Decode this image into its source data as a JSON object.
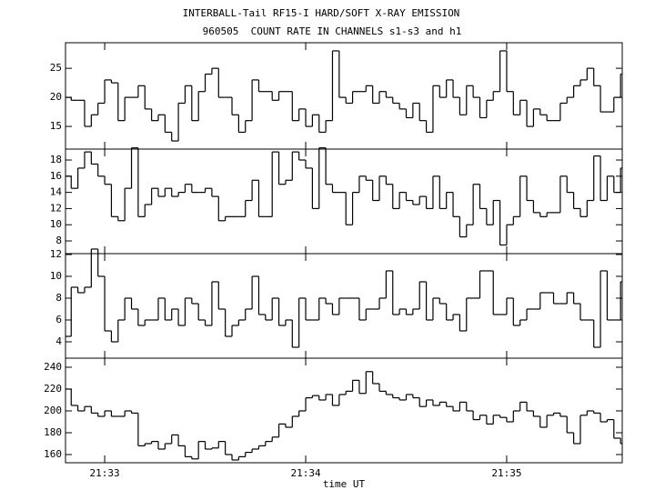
{
  "chart_data": [
    {
      "type": "line",
      "title": "INTERBALL-Tail RF15-I HARD/SOFT X-RAY EMISSION",
      "subtitle": "960505  COUNT RATE IN CHANNELS s1-s3 and h1",
      "x": [
        -12,
        -10,
        -8,
        -6,
        -4,
        -2,
        0,
        2,
        4,
        6,
        8,
        10,
        12,
        14,
        16,
        18,
        20,
        22,
        24,
        26,
        28,
        30,
        32,
        34,
        36,
        38,
        40,
        42,
        44,
        46,
        48,
        50,
        52,
        54,
        56,
        58,
        60,
        62,
        64,
        66,
        68,
        70,
        72,
        74,
        76,
        78,
        80,
        82,
        84,
        86,
        88,
        90,
        92,
        94,
        96,
        98,
        100,
        102,
        104,
        106,
        108,
        110,
        112,
        114,
        116,
        118,
        120,
        122,
        124,
        126,
        128,
        130,
        132,
        134,
        136,
        138,
        140,
        142,
        144,
        146,
        148,
        150,
        152,
        154
      ],
      "values": [
        20,
        19.5,
        19.5,
        15,
        17,
        19,
        23,
        22.5,
        16,
        20,
        20,
        22,
        18,
        16,
        17,
        14,
        12.5,
        19,
        22,
        16,
        21,
        24,
        25,
        20,
        20,
        17,
        14,
        16,
        23,
        21,
        21,
        19.5,
        21,
        21,
        16,
        18,
        15,
        17,
        14,
        16,
        28,
        20,
        19,
        21,
        21,
        22,
        19,
        21,
        20,
        19,
        18,
        16.5,
        19,
        16,
        14,
        22,
        20,
        23,
        20,
        17,
        22,
        20,
        16.5,
        19.5,
        21,
        28,
        21,
        17,
        19.5,
        15,
        18,
        17,
        16,
        16,
        19,
        20,
        22,
        23,
        25,
        22,
        17.5,
        17.5,
        20,
        24
      ],
      "xlim": [
        -11.7,
        154.5
      ],
      "ylim": [
        11.1,
        29.4
      ],
      "yticks": [
        15,
        20,
        25
      ]
    },
    {
      "type": "line",
      "x": [
        -12,
        -10,
        -8,
        -6,
        -4,
        -2,
        0,
        2,
        4,
        6,
        8,
        10,
        12,
        14,
        16,
        18,
        20,
        22,
        24,
        26,
        28,
        30,
        32,
        34,
        36,
        38,
        40,
        42,
        44,
        46,
        48,
        50,
        52,
        54,
        56,
        58,
        60,
        62,
        64,
        66,
        68,
        70,
        72,
        74,
        76,
        78,
        80,
        82,
        84,
        86,
        88,
        90,
        92,
        94,
        96,
        98,
        100,
        102,
        104,
        106,
        108,
        110,
        112,
        114,
        116,
        118,
        120,
        122,
        124,
        126,
        128,
        130,
        132,
        134,
        136,
        138,
        140,
        142,
        144,
        146,
        148,
        150,
        152,
        154
      ],
      "values": [
        16,
        14.5,
        17,
        19,
        17.5,
        16,
        15,
        11,
        10.5,
        14.5,
        19.5,
        11,
        12.5,
        14.5,
        13.5,
        14.5,
        13.5,
        14,
        15,
        14,
        14,
        14.5,
        13.5,
        10.5,
        11,
        11,
        11,
        13,
        15.5,
        11,
        11,
        19,
        15,
        15.5,
        19,
        18,
        17,
        12,
        19.5,
        15,
        14,
        14,
        10,
        14,
        16,
        15.5,
        13,
        16,
        15,
        12,
        14,
        13,
        12.5,
        13.5,
        12,
        16,
        12,
        14,
        11,
        8.5,
        10,
        15,
        12,
        10,
        13,
        7.5,
        10,
        11,
        16,
        13,
        11.5,
        11,
        11.5,
        11.5,
        16,
        14,
        12,
        11,
        13,
        18.5,
        13,
        16,
        14,
        17
      ],
      "xlim": [
        -11.7,
        154.5
      ],
      "ylim": [
        6.43,
        19.35
      ],
      "yticks": [
        8,
        10,
        12,
        14,
        16,
        18
      ]
    },
    {
      "type": "line",
      "x": [
        -12,
        -10,
        -8,
        -6,
        -4,
        -2,
        0,
        2,
        4,
        6,
        8,
        10,
        12,
        14,
        16,
        18,
        20,
        22,
        24,
        26,
        28,
        30,
        32,
        34,
        36,
        38,
        40,
        42,
        44,
        46,
        48,
        50,
        52,
        54,
        56,
        58,
        60,
        62,
        64,
        66,
        68,
        70,
        72,
        74,
        76,
        78,
        80,
        82,
        84,
        86,
        88,
        90,
        92,
        94,
        96,
        98,
        100,
        102,
        104,
        106,
        108,
        110,
        112,
        114,
        116,
        118,
        120,
        122,
        124,
        126,
        128,
        130,
        132,
        134,
        136,
        138,
        140,
        142,
        144,
        146,
        148,
        150,
        152,
        154
      ],
      "values": [
        4.5,
        9,
        8.5,
        9,
        12.5,
        10,
        5,
        4,
        6,
        8,
        7,
        5.5,
        6,
        6,
        8,
        6,
        7,
        5.5,
        8,
        7.5,
        6,
        5.5,
        9.5,
        7,
        4.5,
        5.5,
        6,
        7,
        10,
        6.5,
        6,
        8,
        5.5,
        6,
        3.5,
        8,
        6,
        6,
        8,
        7.5,
        6.5,
        8,
        8,
        8,
        6,
        7,
        7,
        8,
        10.5,
        6.5,
        7,
        6.5,
        7,
        9.5,
        6,
        8,
        7.5,
        6,
        6.5,
        5,
        8,
        8,
        10.5,
        10.5,
        6.5,
        6.5,
        8,
        5.5,
        6,
        7,
        7,
        8.5,
        8.5,
        7.5,
        7.5,
        8.5,
        7.5,
        6,
        6,
        3.5,
        10.5,
        6,
        6,
        9.5
      ],
      "xlim": [
        -11.7,
        154.5
      ],
      "ylim": [
        2.5,
        12.08
      ],
      "yticks": [
        4,
        6,
        8,
        10,
        12
      ]
    },
    {
      "type": "line",
      "x_label": "time UT",
      "x": [
        -12,
        -10,
        -8,
        -6,
        -4,
        -2,
        0,
        2,
        4,
        6,
        8,
        10,
        12,
        14,
        16,
        18,
        20,
        22,
        24,
        26,
        28,
        30,
        32,
        34,
        36,
        38,
        40,
        42,
        44,
        46,
        48,
        50,
        52,
        54,
        56,
        58,
        60,
        62,
        64,
        66,
        68,
        70,
        72,
        74,
        76,
        78,
        80,
        82,
        84,
        86,
        88,
        90,
        92,
        94,
        96,
        98,
        100,
        102,
        104,
        106,
        108,
        110,
        112,
        114,
        116,
        118,
        120,
        122,
        124,
        126,
        128,
        130,
        132,
        134,
        136,
        138,
        140,
        142,
        144,
        146,
        148,
        150,
        152,
        154
      ],
      "values": [
        220,
        205,
        200,
        204,
        198,
        195,
        200,
        195,
        195,
        200,
        198,
        168,
        170,
        172,
        165,
        170,
        178,
        168,
        158,
        156,
        172,
        165,
        166,
        172,
        160,
        155,
        158,
        162,
        165,
        168,
        172,
        176,
        188,
        185,
        195,
        200,
        212,
        214,
        210,
        215,
        205,
        215,
        218,
        228,
        216,
        236,
        225,
        218,
        215,
        212,
        210,
        215,
        212,
        204,
        210,
        205,
        208,
        204,
        200,
        208,
        200,
        192,
        196,
        188,
        196,
        194,
        190,
        200,
        208,
        200,
        195,
        185,
        196,
        198,
        195,
        180,
        170,
        196,
        200,
        198,
        190,
        192,
        175,
        170
      ],
      "xlim": [
        -11.7,
        154.5
      ],
      "ylim": [
        152.5,
        248.3
      ],
      "yticks": [
        160,
        180,
        200,
        220,
        240
      ],
      "xticks": [
        {
          "value": 0,
          "label": "21:33"
        },
        {
          "value": 60,
          "label": "21:34"
        },
        {
          "value": 120,
          "label": "21:35"
        }
      ]
    }
  ]
}
